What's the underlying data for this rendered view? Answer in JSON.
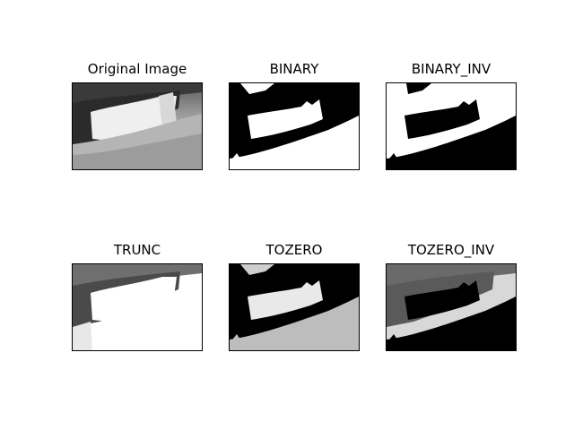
{
  "panels": [
    {
      "title": "Original Image",
      "kind": "original"
    },
    {
      "title": "BINARY",
      "kind": "binary"
    },
    {
      "title": "BINARY_INV",
      "kind": "binary_inv"
    },
    {
      "title": "TRUNC",
      "kind": "trunc"
    },
    {
      "title": "TOZERO",
      "kind": "tozero"
    },
    {
      "title": "TOZERO_INV",
      "kind": "tozero_inv"
    }
  ]
}
